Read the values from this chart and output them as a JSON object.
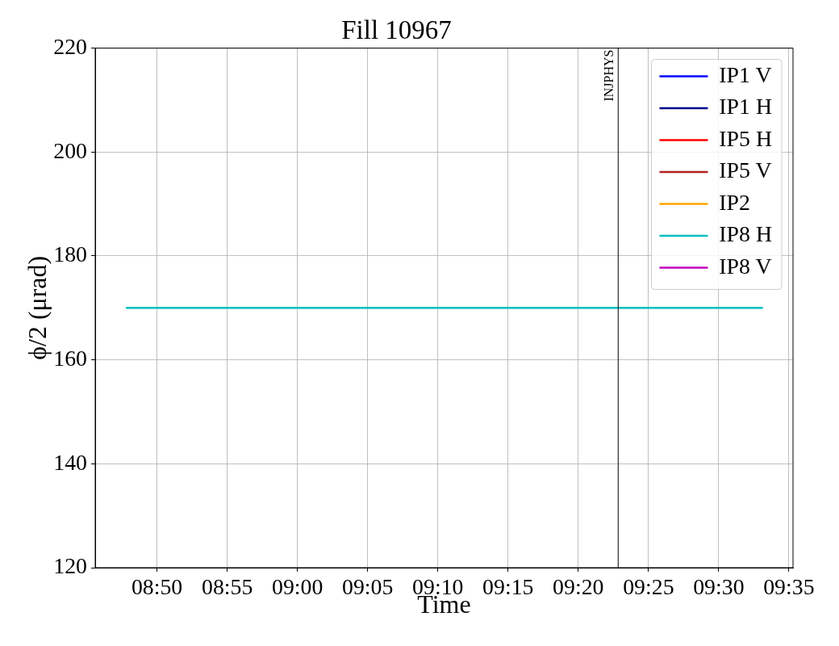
{
  "chart_data": {
    "type": "line",
    "title": "Fill 10967",
    "xlabel": "Time",
    "ylabel": "ϕ/2 (μrad)",
    "x": [
      8.7965,
      9.5524
    ],
    "series": [
      {
        "name": "IP1 V",
        "color": "#0000ff",
        "values": [
          null,
          null
        ]
      },
      {
        "name": "IP1 H",
        "color": "#00008b",
        "values": [
          null,
          null
        ]
      },
      {
        "name": "IP5 H",
        "color": "#ff0000",
        "values": [
          null,
          null
        ]
      },
      {
        "name": "IP5 V",
        "color": "#b22222",
        "values": [
          null,
          null
        ]
      },
      {
        "name": "IP2",
        "color": "#ffa500",
        "values": [
          null,
          null
        ]
      },
      {
        "name": "IP8 H",
        "color": "#00bfbf",
        "values": [
          170,
          170
        ]
      },
      {
        "name": "IP8 V",
        "color": "#bf00bf",
        "values": [
          null,
          null
        ]
      }
    ],
    "xlim": [
      8.76,
      9.5882
    ],
    "xticks": [
      {
        "value": 8.8333,
        "label": "08:50"
      },
      {
        "value": 8.9167,
        "label": "08:55"
      },
      {
        "value": 9,
        "label": "09:00"
      },
      {
        "value": 9.0833,
        "label": "09:05"
      },
      {
        "value": 9.1667,
        "label": "09:10"
      },
      {
        "value": 9.25,
        "label": "09:15"
      },
      {
        "value": 9.3333,
        "label": "09:20"
      },
      {
        "value": 9.4167,
        "label": "09:25"
      },
      {
        "value": 9.5,
        "label": "09:30"
      },
      {
        "value": 9.5833,
        "label": "09:35"
      }
    ],
    "ylim": [
      120,
      220
    ],
    "yticks": [
      120,
      140,
      160,
      180,
      200,
      220
    ],
    "ref_lines": [
      {
        "axis": "x",
        "value": 9.3807,
        "label": "INJPHYS",
        "color": "#000000"
      }
    ],
    "grid": true,
    "legend": "top right"
  }
}
